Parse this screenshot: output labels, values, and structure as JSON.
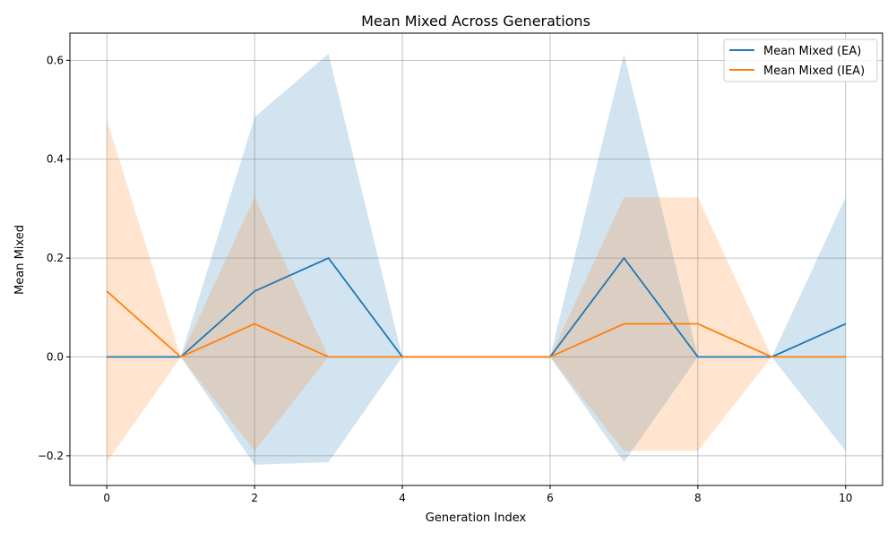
{
  "chart_data": {
    "type": "line",
    "title": "Mean Mixed Across Generations",
    "xlabel": "Generation Index",
    "ylabel": "Mean Mixed",
    "xlim": [
      -0.5,
      10.5
    ],
    "ylim": [
      -0.26,
      0.655
    ],
    "x": [
      0,
      1,
      2,
      3,
      4,
      5,
      6,
      7,
      8,
      9,
      10
    ],
    "xticks": [
      0,
      2,
      4,
      6,
      8,
      10
    ],
    "xtick_labels": [
      "0",
      "2",
      "4",
      "6",
      "8",
      "10"
    ],
    "yticks": [
      -0.2,
      0.0,
      0.2,
      0.4,
      0.6
    ],
    "ytick_labels": [
      "−0.2",
      "0.0",
      "0.2",
      "0.4",
      "0.6"
    ],
    "grid": true,
    "legend_position": "top-right",
    "series": [
      {
        "name": "Mean Mixed (EA)",
        "color": "#1f77b4",
        "values": [
          0.0,
          0.0,
          0.133,
          0.2,
          0.0,
          0.0,
          0.0,
          0.2,
          0.0,
          0.0,
          0.067
        ],
        "band_lower": [
          0.0,
          0.0,
          -0.218,
          -0.213,
          0.0,
          0.0,
          0.0,
          -0.213,
          0.0,
          0.0,
          -0.19
        ],
        "band_upper": [
          0.0,
          0.0,
          0.485,
          0.613,
          0.0,
          0.0,
          0.0,
          0.613,
          0.0,
          0.0,
          0.323
        ]
      },
      {
        "name": "Mean Mixed (IEA)",
        "color": "#ff7f0e",
        "values": [
          0.133,
          0.0,
          0.067,
          0.0,
          0.0,
          0.0,
          0.0,
          0.067,
          0.067,
          0.0,
          0.0
        ],
        "band_lower": [
          -0.213,
          0.0,
          -0.19,
          0.0,
          0.0,
          0.0,
          0.0,
          -0.19,
          -0.19,
          0.0,
          0.0
        ],
        "band_upper": [
          0.48,
          0.0,
          0.323,
          0.0,
          0.0,
          0.0,
          0.0,
          0.323,
          0.323,
          0.0,
          0.0
        ]
      }
    ]
  }
}
